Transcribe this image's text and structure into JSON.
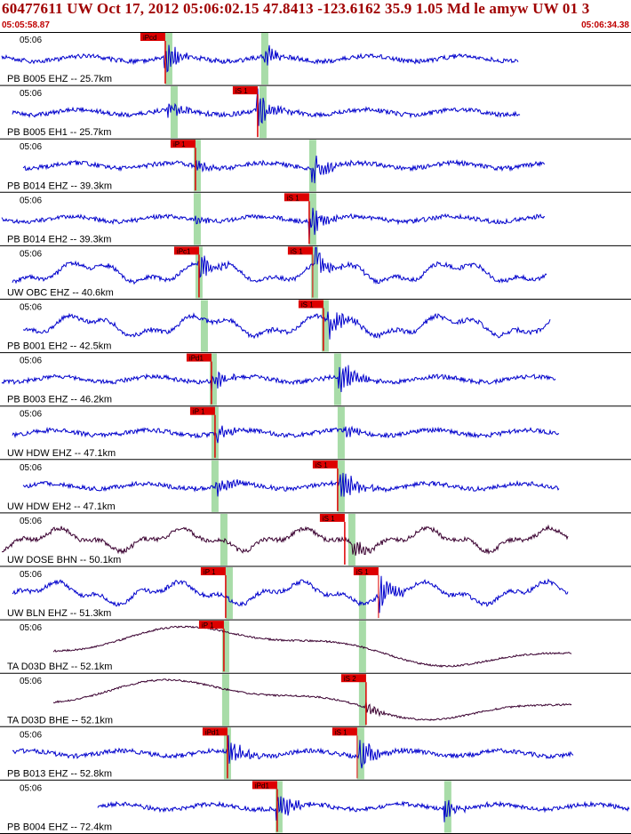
{
  "header": {
    "title": "60477611 UW Oct 17, 2012 05:06:02.15   47.8413 -123.6162 35.9 1.05 Md le amyw UW 01    3",
    "start_time": "05:05:58.87",
    "end_time": "05:06:34.38"
  },
  "colors": {
    "trace_blue": "#0000cc",
    "trace_dark": "#3a0030",
    "pick_red": "#dd0000",
    "window_green": "#a8dca8",
    "header_red": "#a00000"
  },
  "chart_data": {
    "type": "line",
    "x_unit": "seconds",
    "xlim": [
      0,
      35.51
    ],
    "time_label": "05:06",
    "traces": [
      {
        "label": "PB B005 EHZ -- 25.7km",
        "time_label": "05:06",
        "color": "blue",
        "kind": "spiky",
        "end_t": 29.2,
        "green_windows": [
          9.5,
          14.9
        ],
        "picks": [
          {
            "label": "iPcd",
            "t": 9.3,
            "main": true
          }
        ],
        "bursts": [
          {
            "t": 9.3,
            "amp": 1.0
          },
          {
            "t": 14.9,
            "amp": 0.55
          }
        ]
      },
      {
        "label": "PB B005 EH1 -- 25.7km",
        "time_label": "05:06",
        "color": "blue",
        "kind": "spiky",
        "end_t": 29.3,
        "green_windows": [
          9.8,
          14.8
        ],
        "picks": [
          {
            "label": "iS 1",
            "t": 14.5,
            "main": true
          }
        ],
        "bursts": [
          {
            "t": 9.5,
            "amp": 0.45
          },
          {
            "t": 14.5,
            "amp": 1.0
          }
        ]
      },
      {
        "label": "PB B014 EHZ -- 39.3km",
        "time_label": "05:06",
        "color": "blue",
        "kind": "spiky",
        "end_t": 30.7,
        "green_windows": [
          11.1,
          17.6
        ],
        "picks": [
          {
            "label": "iP 1",
            "t": 11.0,
            "main": true
          }
        ],
        "bursts": [
          {
            "t": 11.0,
            "amp": 0.3
          },
          {
            "t": 17.6,
            "amp": 1.0
          }
        ]
      },
      {
        "label": "PB B014 EH2 -- 39.3km",
        "time_label": "05:06",
        "color": "blue",
        "kind": "spiky",
        "end_t": 30.7,
        "green_windows": [
          11.1,
          17.6
        ],
        "picks": [
          {
            "label": "iS 1",
            "t": 17.4,
            "main": true
          }
        ],
        "bursts": [
          {
            "t": 11.0,
            "amp": 0.2
          },
          {
            "t": 17.4,
            "amp": 1.0
          }
        ]
      },
      {
        "label": "UW OBC EHZ -- 40.6km",
        "time_label": "05:06",
        "color": "blue",
        "kind": "wavy",
        "end_t": 30.8,
        "green_windows": [
          11.2,
          17.7
        ],
        "picks": [
          {
            "label": "iPc1",
            "t": 11.2,
            "main": true
          },
          {
            "label": "iS 1",
            "t": 17.6,
            "main": false
          }
        ],
        "bursts": [
          {
            "t": 11.3,
            "amp": 0.7
          },
          {
            "t": 17.8,
            "amp": 0.9
          }
        ]
      },
      {
        "label": "PB B001 EH2 -- 42.5km",
        "time_label": "05:06",
        "color": "blue",
        "kind": "wavy",
        "end_t": 31.0,
        "green_windows": [
          11.5,
          18.3
        ],
        "picks": [
          {
            "label": "iS 1",
            "t": 18.2,
            "main": true
          }
        ],
        "bursts": [
          {
            "t": 18.5,
            "amp": 0.8
          }
        ]
      },
      {
        "label": "PB B003 EHZ -- 46.2km",
        "time_label": "05:06",
        "color": "blue",
        "kind": "spiky",
        "end_t": 31.3,
        "green_windows": [
          12.0,
          19.0
        ],
        "picks": [
          {
            "label": "iPd1",
            "t": 11.9,
            "main": true
          }
        ],
        "bursts": [
          {
            "t": 11.9,
            "amp": 0.6
          },
          {
            "t": 19.1,
            "amp": 1.0
          }
        ]
      },
      {
        "label": "UW HDW EHZ -- 47.1km",
        "time_label": "05:06",
        "color": "blue",
        "kind": "spiky",
        "end_t": 31.5,
        "green_windows": [
          12.1,
          19.2
        ],
        "picks": [
          {
            "label": "iP 1",
            "t": 12.1,
            "main": true
          }
        ],
        "bursts": [
          {
            "t": 12.2,
            "amp": 0.5
          },
          {
            "t": 19.5,
            "amp": 0.3
          }
        ]
      },
      {
        "label": "UW HDW EH2 -- 47.1km",
        "time_label": "05:06",
        "color": "blue",
        "kind": "spiky",
        "end_t": 31.5,
        "green_windows": [
          12.1,
          19.2
        ],
        "picks": [
          {
            "label": "iS 1",
            "t": 19.0,
            "main": true
          }
        ],
        "bursts": [
          {
            "t": 12.2,
            "amp": 0.7
          },
          {
            "t": 19.2,
            "amp": 1.0
          }
        ]
      },
      {
        "label": "UW DOSE BHN -- 50.1km",
        "time_label": "05:06",
        "color": "dark",
        "kind": "wavy",
        "end_t": 32.0,
        "green_windows": [
          12.6,
          19.8
        ],
        "picks": [
          {
            "label": "iS 1",
            "t": 19.4,
            "main": true
          }
        ],
        "bursts": [
          {
            "t": 19.8,
            "amp": 0.6
          }
        ]
      },
      {
        "label": "UW BLN EHZ -- 51.3km",
        "time_label": "05:06",
        "color": "blue",
        "kind": "wavy",
        "end_t": 32.0,
        "green_windows": [
          12.9,
          20.4
        ],
        "picks": [
          {
            "label": "iP 1",
            "t": 12.7,
            "main": true
          },
          {
            "label": "iS 1",
            "t": 21.3,
            "main": false
          }
        ],
        "bursts": [
          {
            "t": 21.4,
            "amp": 0.9
          }
        ]
      },
      {
        "label": "TA D03D BHZ -- 52.1km",
        "time_label": "05:06",
        "color": "dark",
        "kind": "long",
        "end_t": 32.2,
        "green_windows": [
          12.7,
          20.4
        ],
        "picks": [
          {
            "label": "iP 1",
            "t": 12.6,
            "main": true
          }
        ],
        "bursts": []
      },
      {
        "label": "TA D03D BHE -- 52.1km",
        "time_label": "05:06",
        "color": "dark",
        "kind": "long",
        "end_t": 32.2,
        "green_windows": [
          12.7,
          20.4
        ],
        "picks": [
          {
            "label": "iS 2",
            "t": 20.6,
            "main": true
          }
        ],
        "bursts": [
          {
            "t": 20.6,
            "amp": 0.4
          }
        ]
      },
      {
        "label": "PB B013 EHZ -- 52.8km",
        "time_label": "05:06",
        "color": "blue",
        "kind": "spiky",
        "end_t": 32.3,
        "green_windows": [
          12.8,
          20.3
        ],
        "picks": [
          {
            "label": "iPd1",
            "t": 12.8,
            "main": true
          },
          {
            "label": "iS 1",
            "t": 20.1,
            "main": false
          }
        ],
        "bursts": [
          {
            "t": 12.9,
            "amp": 0.7
          },
          {
            "t": 20.3,
            "amp": 1.0
          }
        ]
      },
      {
        "label": "PB B004 EHZ -- 72.4km",
        "time_label": "05:06",
        "color": "blue",
        "kind": "spiky",
        "end_t": 35.5,
        "green_windows": [
          15.7,
          25.2
        ],
        "picks": [
          {
            "label": "iPd1",
            "t": 15.6,
            "main": true
          }
        ],
        "bursts": [
          {
            "t": 15.6,
            "amp": 0.9
          },
          {
            "t": 25.0,
            "amp": 0.6
          }
        ]
      }
    ]
  }
}
